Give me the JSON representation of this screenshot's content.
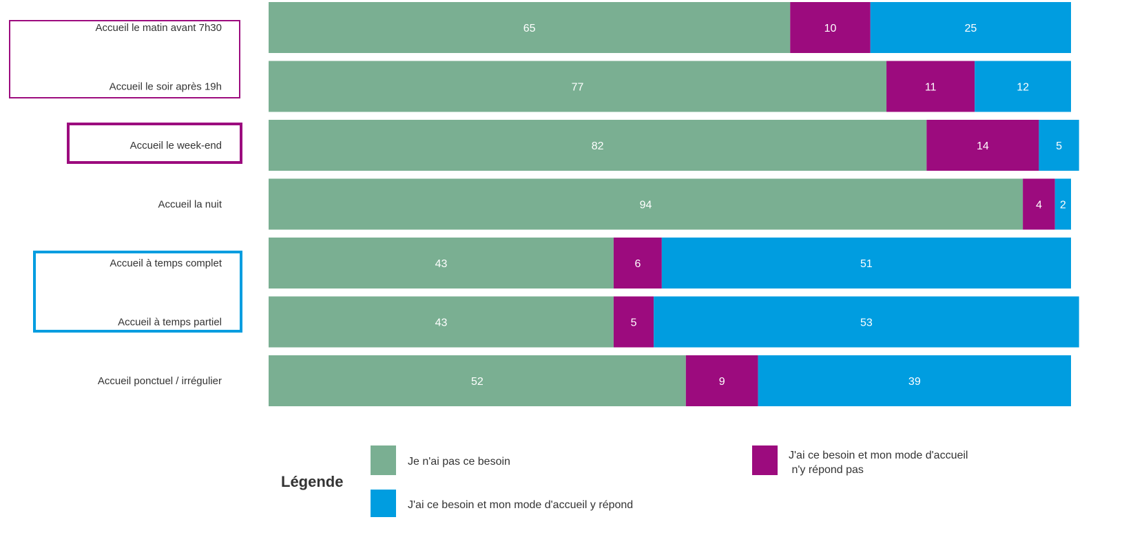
{
  "chart_data": {
    "type": "bar",
    "orientation": "horizontal",
    "stacked": true,
    "percent_stacked": true,
    "title": "",
    "xlabel": "",
    "ylabel": "",
    "xlim": [
      0,
      100
    ],
    "grid": false,
    "legend_placement": "bottom",
    "categories": [
      "Accueil le matin avant 7h30",
      "Accueil le soir après 19h",
      "Accueil le week-end",
      "Accueil la nuit",
      "Accueil à temps complet",
      "Accueil à temps partiel",
      "Accueil ponctuel / irrégulier"
    ],
    "series": [
      {
        "name": "Je n'ai pas ce besoin",
        "color": "#7aaf92",
        "values": [
          65,
          77,
          82,
          94,
          43,
          43,
          52
        ]
      },
      {
        "name": "J'ai ce besoin et mon mode d'accueil n'y répond pas",
        "color": "#9c0b7e",
        "values": [
          10,
          11,
          14,
          4,
          6,
          5,
          9
        ]
      },
      {
        "name": "J'ai ce besoin et mon mode d'accueil y répond",
        "color": "#009de0",
        "values": [
          25,
          12,
          5,
          2,
          51,
          53,
          39
        ]
      }
    ],
    "highlight_groups": [
      {
        "color": "#9c0b7e",
        "categories": [
          "Accueil le matin avant 7h30",
          "Accueil le soir après 19h"
        ]
      },
      {
        "color": "#9c0b7e",
        "categories": [
          "Accueil le week-end"
        ]
      },
      {
        "color": "#009de0",
        "categories": [
          "Accueil à temps complet",
          "Accueil à temps partiel"
        ]
      }
    ],
    "legend": {
      "title": "Légende",
      "entries": [
        {
          "series": 0,
          "lines": [
            "Je n'ai pas ce besoin"
          ]
        },
        {
          "series": 2,
          "lines": [
            "J'ai ce besoin et mon mode d'accueil y répond"
          ]
        },
        {
          "series": 1,
          "lines": [
            "J'ai ce besoin et mon mode d'accueil",
            " n'y répond pas"
          ]
        }
      ]
    }
  }
}
